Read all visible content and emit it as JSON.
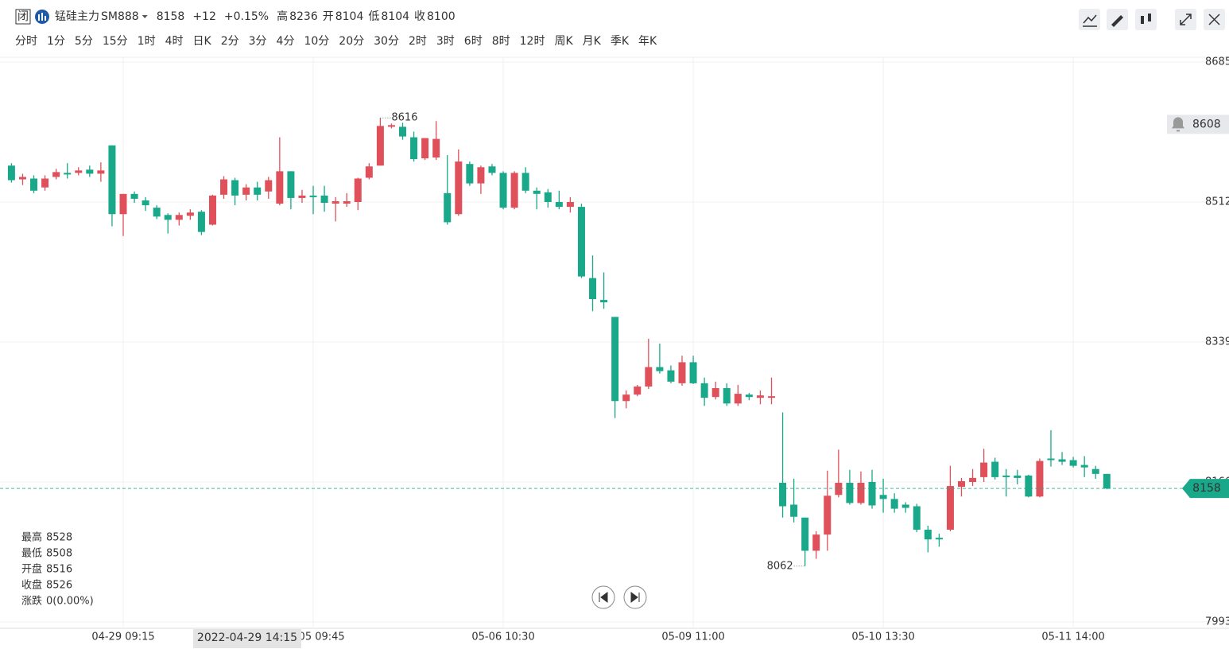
{
  "header": {
    "status": "闭",
    "name": "锰硅主力",
    "code": "SM888",
    "price": "8158",
    "change": "+12",
    "change_pct": "+0.15%",
    "stats": [
      {
        "label": "高",
        "value": 8236
      },
      {
        "label": "开",
        "value": 8104
      },
      {
        "label": "低",
        "value": 8104
      },
      {
        "label": "收",
        "value": 8100
      }
    ]
  },
  "tabs": [
    "分时",
    "1分",
    "5分",
    "15分",
    "1时",
    "4时",
    "日K",
    "2分",
    "3分",
    "4分",
    "10分",
    "20分",
    "30分",
    "2时",
    "3时",
    "6时",
    "8时",
    "12时",
    "周K",
    "月K",
    "季K",
    "年K"
  ],
  "active_tab_index": 3,
  "info_panel": [
    {
      "label": "最高",
      "value": 8528
    },
    {
      "label": "最低",
      "value": 8508
    },
    {
      "label": "开盘",
      "value": 8516
    },
    {
      "label": "收盘",
      "value": 8526
    },
    {
      "label": "涨跌",
      "value": "0(0.00%)"
    }
  ],
  "crosshair_time": "2022-04-29 14:15",
  "chart_data": {
    "type": "candlestick",
    "categories": [
      null,
      null,
      null,
      null,
      null,
      null,
      null,
      null,
      null,
      null,
      "04-29 09:15",
      null,
      null,
      null,
      null,
      null,
      null,
      null,
      null,
      null,
      null,
      null,
      null,
      null,
      null,
      null,
      null,
      "05-05 09:45",
      null,
      null,
      null,
      null,
      null,
      null,
      null,
      null,
      null,
      null,
      null,
      null,
      null,
      null,
      null,
      null,
      "05-06 10:30",
      null,
      null,
      null,
      null,
      null,
      null,
      null,
      null,
      null,
      null,
      null,
      null,
      null,
      null,
      null,
      null,
      "05-09 11:00",
      null,
      null,
      null,
      null,
      null,
      null,
      null,
      null,
      null,
      null,
      null,
      null,
      null,
      null,
      null,
      null,
      "05-10 13:30",
      null,
      null,
      null,
      null,
      null,
      null,
      null,
      null,
      null,
      null,
      null,
      null,
      null,
      null,
      null,
      null,
      "05-11 14:00",
      null,
      null,
      null
    ],
    "open": [
      8557,
      8540,
      8541,
      8530,
      8543,
      8548,
      8548,
      8552,
      8547,
      8582,
      8497,
      8522,
      8514,
      8505,
      8496,
      8490,
      8495,
      8500,
      8484,
      8521,
      8539,
      8521,
      8530,
      8525,
      8510,
      8550,
      8517,
      8520,
      8520,
      8510,
      8510,
      8512,
      8542,
      8557,
      8605,
      8605,
      8592,
      8566,
      8567,
      8523,
      8497,
      8559,
      8535,
      8556,
      8548,
      8505,
      8548,
      8526,
      8524,
      8512,
      8506,
      8506,
      8418,
      8391,
      8370,
      8266,
      8274,
      8284,
      8308,
      8304,
      8288,
      8314,
      8288,
      8271,
      8282,
      8263,
      8274,
      8270,
      8270,
      8165,
      8138,
      8122,
      8081,
      8101,
      8150,
      8165,
      8140,
      8166,
      8150,
      8145,
      8138,
      8136,
      8107,
      8097,
      8107,
      8160,
      8166,
      8172,
      8191,
      8174,
      8174,
      8174,
      8148,
      8195,
      8194,
      8193,
      8187,
      8182,
      8176
    ],
    "high": [
      8560,
      8547,
      8545,
      8545,
      8553,
      8560,
      8555,
      8557,
      8561,
      8582,
      8522,
      8525,
      8518,
      8508,
      8498,
      8499,
      8503,
      8502,
      8521,
      8544,
      8542,
      8534,
      8537,
      8543,
      8592,
      8550,
      8527,
      8532,
      8532,
      8518,
      8523,
      8542,
      8560,
      8616,
      8609,
      8610,
      8599,
      8591,
      8612,
      8570,
      8577,
      8562,
      8557,
      8559,
      8550,
      8550,
      8555,
      8530,
      8528,
      8526,
      8518,
      8510,
      8446,
      8425,
      8370,
      8279,
      8286,
      8343,
      8337,
      8310,
      8322,
      8322,
      8295,
      8290,
      8288,
      8286,
      8276,
      8279,
      8295,
      8252,
      8170,
      8122,
      8105,
      8180,
      8206,
      8181,
      8179,
      8181,
      8170,
      8152,
      8141,
      8139,
      8112,
      8102,
      8186,
      8171,
      8182,
      8207,
      8196,
      8182,
      8181,
      8175,
      8195,
      8230,
      8203,
      8197,
      8198,
      8186,
      8176
    ],
    "low": [
      8536,
      8533,
      8523,
      8526,
      8540,
      8541,
      8545,
      8543,
      8537,
      8482,
      8470,
      8511,
      8501,
      8491,
      8473,
      8483,
      8490,
      8471,
      8483,
      8516,
      8508,
      8514,
      8514,
      8516,
      8508,
      8503,
      8511,
      8497,
      8500,
      8488,
      8506,
      8502,
      8540,
      8557,
      8603,
      8589,
      8562,
      8564,
      8564,
      8484,
      8495,
      8532,
      8522,
      8545,
      8503,
      8503,
      8523,
      8503,
      8505,
      8503,
      8499,
      8418,
      8377,
      8380,
      8245,
      8257,
      8272,
      8281,
      8300,
      8288,
      8285,
      8287,
      8260,
      8268,
      8260,
      8260,
      8267,
      8262,
      8262,
      8122,
      8116,
      8062,
      8071,
      8081,
      8147,
      8138,
      8138,
      8133,
      8128,
      8128,
      8128,
      8104,
      8079,
      8086,
      8105,
      8148,
      8161,
      8166,
      8169,
      8148,
      8163,
      8147,
      8147,
      8185,
      8187,
      8184,
      8172,
      8170,
      8157
    ],
    "close": [
      8539,
      8543,
      8526,
      8541,
      8549,
      8546,
      8551,
      8547,
      8551,
      8497,
      8522,
      8516,
      8508,
      8494,
      8490,
      8496,
      8499,
      8475,
      8520,
      8540,
      8520,
      8530,
      8521,
      8539,
      8550,
      8517,
      8520,
      8518,
      8511,
      8513,
      8513,
      8541,
      8556,
      8606,
      8607,
      8593,
      8565,
      8591,
      8590,
      8487,
      8562,
      8535,
      8555,
      8548,
      8505,
      8548,
      8526,
      8522,
      8512,
      8506,
      8512,
      8420,
      8392,
      8388,
      8266,
      8274,
      8284,
      8308,
      8303,
      8290,
      8314,
      8288,
      8270,
      8282,
      8263,
      8275,
      8271,
      8273,
      8272,
      8136,
      8123,
      8081,
      8101,
      8149,
      8165,
      8140,
      8165,
      8137,
      8145,
      8133,
      8134,
      8107,
      8095,
      8095,
      8161,
      8167,
      8171,
      8190,
      8172,
      8172,
      8171,
      8148,
      8192,
      8193,
      8191,
      8186,
      8184,
      8176,
      8158
    ],
    "up_color": "#e0505b",
    "down_color": "#1aa88a",
    "ylim": [
      7993,
      8685
    ],
    "yticks": [
      7993,
      8166,
      8339,
      8512,
      8685
    ],
    "tick_color": "#e0505b",
    "grid": true,
    "high_mark_index": 33,
    "low_mark_index": 71,
    "alert_price": 8608
  }
}
